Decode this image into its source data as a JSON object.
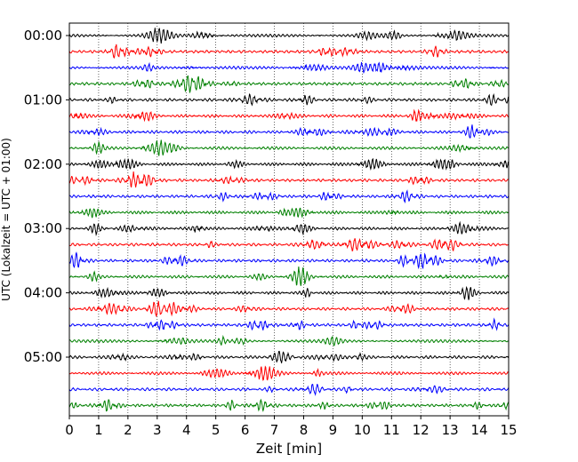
{
  "chart_data": {
    "type": "line",
    "xlabel": "Zeit  [min]",
    "ylabel": "UTC (Lokalzeit = UTC + 01:00)",
    "xlim": [
      0,
      15
    ],
    "x_ticks": [
      0,
      1,
      2,
      3,
      4,
      5,
      6,
      7,
      8,
      9,
      10,
      11,
      12,
      13,
      14,
      15
    ],
    "y_ticks": [
      "00:00",
      "01:00",
      "02:00",
      "03:00",
      "04:00",
      "05:00"
    ],
    "trace_minutes": 15,
    "trace_start_times": [
      "00:00",
      "00:15",
      "00:30",
      "00:45",
      "01:00",
      "01:15",
      "01:30",
      "01:45",
      "02:00",
      "02:15",
      "02:30",
      "02:45",
      "03:00",
      "03:15",
      "03:30",
      "03:45",
      "04:00",
      "04:15",
      "04:30",
      "04:45",
      "05:00",
      "05:15",
      "05:30",
      "05:45"
    ],
    "trace_colors": [
      "#000000",
      "#ff0000",
      "#0000ff",
      "#008000"
    ],
    "grid": "vertical dotted lines at every minute",
    "signal": "continuous seismometer noise; each trace is one 15-minute window, colours cycle black, red, blue, green"
  }
}
